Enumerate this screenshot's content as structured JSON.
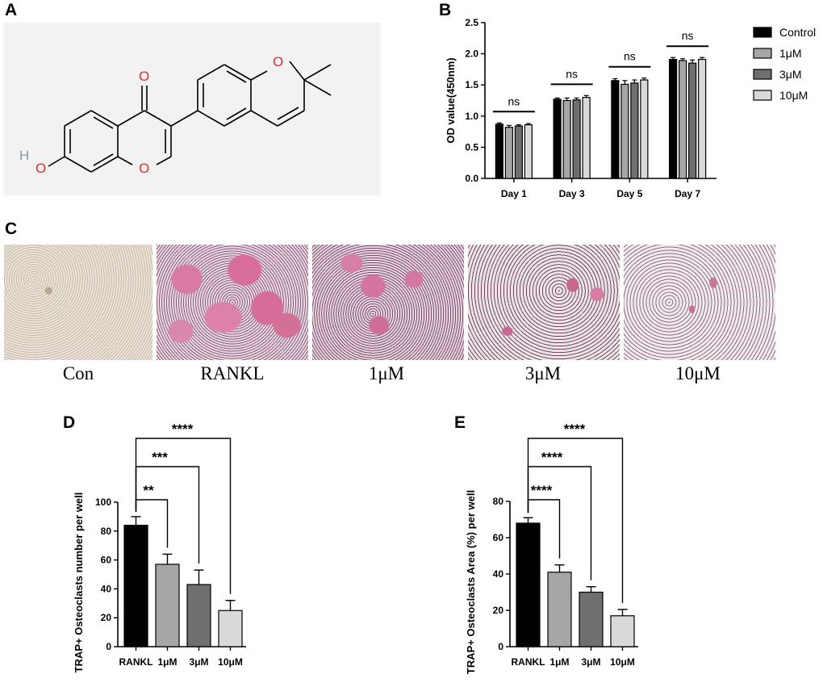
{
  "panels": {
    "a": "A",
    "b": "B",
    "c": "C",
    "d": "D",
    "e": "E"
  },
  "molecule": {
    "atom_labels": [
      "O",
      "O",
      "O",
      "H"
    ]
  },
  "micrographs": {
    "labels": [
      "Con",
      "RANKL",
      "1μM",
      "3μM",
      "10μM"
    ]
  },
  "colors": {
    "black": "#000000",
    "grey_light": "#a6a6a6",
    "grey_dark": "#6f6f6f",
    "grey_pale": "#d9d9d9",
    "trap_pink": "#c0688a"
  },
  "chart_data": [
    {
      "type": "bar",
      "panel": "B",
      "ylabel": "OD value(450nm)",
      "xlabel": "",
      "ylim": [
        0,
        2.5
      ],
      "yticks": [
        "0.0",
        "0.5",
        "1.0",
        "1.5",
        "2.0",
        "2.5"
      ],
      "categories": [
        "Day 1",
        "Day 3",
        "Day 5",
        "Day 7"
      ],
      "series": [
        {
          "name": "Control",
          "color": "#000000",
          "values": [
            0.87,
            1.27,
            1.57,
            1.91
          ],
          "errors": [
            0.02,
            0.02,
            0.03,
            0.03
          ]
        },
        {
          "name": "1μM",
          "color": "#a6a6a6",
          "values": [
            0.82,
            1.25,
            1.51,
            1.89
          ],
          "errors": [
            0.03,
            0.04,
            0.06,
            0.03
          ]
        },
        {
          "name": "3μM",
          "color": "#6f6f6f",
          "values": [
            0.84,
            1.26,
            1.53,
            1.85
          ],
          "errors": [
            0.02,
            0.03,
            0.05,
            0.05
          ]
        },
        {
          "name": "10μM",
          "color": "#d9d9d9",
          "values": [
            0.86,
            1.3,
            1.58,
            1.91
          ],
          "errors": [
            0.02,
            0.03,
            0.03,
            0.03
          ]
        }
      ],
      "significance": [
        "ns",
        "ns",
        "ns",
        "ns"
      ],
      "legend_position": "right"
    },
    {
      "type": "bar",
      "panel": "D",
      "ylabel": "TRAP+ Osteoclasts number per well",
      "xlabel": "",
      "ylim": [
        0,
        100
      ],
      "yticks": [
        "0",
        "20",
        "40",
        "60",
        "80",
        "100"
      ],
      "categories": [
        "RANKL",
        "1μM",
        "3μM",
        "10μM"
      ],
      "values": [
        84,
        57,
        43,
        25
      ],
      "errors": [
        6,
        7,
        10,
        7
      ],
      "colors": [
        "#000000",
        "#a6a6a6",
        "#6f6f6f",
        "#d9d9d9"
      ],
      "comparisons": [
        {
          "from": "RANKL",
          "to": "1μM",
          "label": "**"
        },
        {
          "from": "RANKL",
          "to": "3μM",
          "label": "***"
        },
        {
          "from": "RANKL",
          "to": "10μM",
          "label": "****"
        }
      ]
    },
    {
      "type": "bar",
      "panel": "E",
      "ylabel": "TRAP+ Osteoclasts Area (%) per well",
      "xlabel": "",
      "ylim": [
        0,
        80
      ],
      "yticks": [
        "0",
        "20",
        "40",
        "60",
        "80"
      ],
      "categories": [
        "RANKL",
        "1μM",
        "3μM",
        "10μM"
      ],
      "values": [
        68,
        41,
        30,
        17
      ],
      "errors": [
        3,
        4,
        3,
        3.5
      ],
      "colors": [
        "#000000",
        "#a6a6a6",
        "#6f6f6f",
        "#d9d9d9"
      ],
      "comparisons": [
        {
          "from": "RANKL",
          "to": "1μM",
          "label": "****"
        },
        {
          "from": "RANKL",
          "to": "3μM",
          "label": "****"
        },
        {
          "from": "RANKL",
          "to": "10μM",
          "label": "****"
        }
      ]
    }
  ]
}
